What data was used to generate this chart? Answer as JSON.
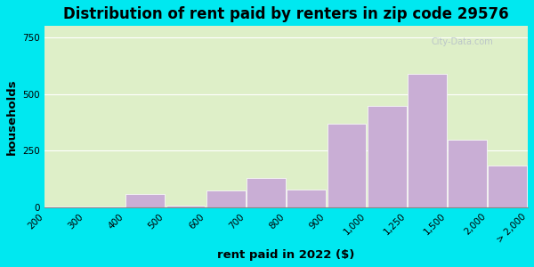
{
  "title": "Distribution of rent paid by renters in zip code 29576",
  "xlabel": "rent paid in 2022 ($)",
  "ylabel": "households",
  "tick_labels": [
    "200",
    "300",
    "400",
    "500",
    "600",
    "700",
    "800",
    "900",
    "1,000",
    "1,250",
    "1,500",
    "2,000",
    "> 2,000"
  ],
  "bar_heights": [
    5,
    5,
    60,
    10,
    75,
    130,
    80,
    370,
    450,
    590,
    300,
    185
  ],
  "bar_color": "#c9aed5",
  "bar_edgecolor": "#ffffff",
  "background_outer": "#00e8f0",
  "background_inner": "#deefc8",
  "yticks": [
    0,
    250,
    500,
    750
  ],
  "ylim": [
    0,
    800
  ],
  "title_fontsize": 12,
  "axis_label_fontsize": 9.5,
  "tick_fontsize": 7.5,
  "watermark_text": "City-Data.com"
}
